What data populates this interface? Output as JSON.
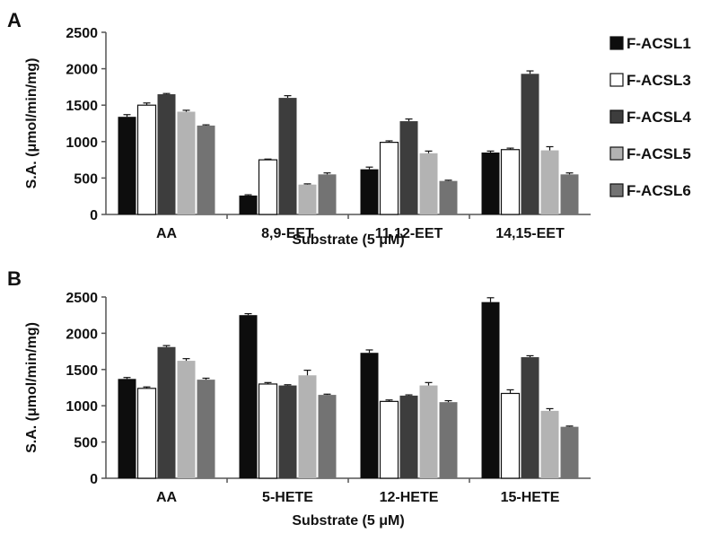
{
  "legend": [
    {
      "label": "F-ACSL1",
      "color": "#0d0d0d"
    },
    {
      "label": "F-ACSL3",
      "color": "#ffffff"
    },
    {
      "label": "F-ACSL4",
      "color": "#3d3d3d"
    },
    {
      "label": "F-ACSL5",
      "color": "#b3b3b3"
    },
    {
      "label": "F-ACSL6",
      "color": "#737373"
    }
  ],
  "chart_data": [
    {
      "panel": "A",
      "type": "bar",
      "xlabel": "Substrate (5 μM)",
      "ylabel": "S.A. (μmol/min/mg)",
      "ylim": [
        0,
        2500
      ],
      "yticks": [
        0,
        500,
        1000,
        1500,
        2000,
        2500
      ],
      "categories": [
        "AA",
        "8,9-EET",
        "11,12-EET",
        "14,15-EET"
      ],
      "series": [
        {
          "name": "F-ACSL1",
          "values": [
            1340,
            260,
            620,
            850
          ],
          "errors": [
            30,
            10,
            30,
            20
          ]
        },
        {
          "name": "F-ACSL3",
          "values": [
            1500,
            750,
            990,
            890
          ],
          "errors": [
            30,
            10,
            20,
            20
          ]
        },
        {
          "name": "F-ACSL4",
          "values": [
            1650,
            1600,
            1280,
            1930
          ],
          "errors": [
            10,
            30,
            30,
            40
          ]
        },
        {
          "name": "F-ACSL5",
          "values": [
            1410,
            410,
            840,
            880
          ],
          "errors": [
            20,
            10,
            30,
            50
          ]
        },
        {
          "name": "F-ACSL6",
          "values": [
            1220,
            550,
            460,
            550
          ],
          "errors": [
            10,
            20,
            10,
            20
          ]
        }
      ]
    },
    {
      "panel": "B",
      "type": "bar",
      "xlabel": "Substrate (5 μM)",
      "ylabel": "S.A. (μmol/min/mg)",
      "ylim": [
        0,
        2500
      ],
      "yticks": [
        0,
        500,
        1000,
        1500,
        2000,
        2500
      ],
      "categories": [
        "AA",
        "5-HETE",
        "12-HETE",
        "15-HETE"
      ],
      "series": [
        {
          "name": "F-ACSL1",
          "values": [
            1370,
            2250,
            1730,
            2430
          ],
          "errors": [
            20,
            20,
            40,
            60
          ]
        },
        {
          "name": "F-ACSL3",
          "values": [
            1240,
            1300,
            1060,
            1170
          ],
          "errors": [
            20,
            20,
            20,
            50
          ]
        },
        {
          "name": "F-ACSL4",
          "values": [
            1810,
            1280,
            1140,
            1670
          ],
          "errors": [
            20,
            10,
            10,
            20
          ]
        },
        {
          "name": "F-ACSL5",
          "values": [
            1620,
            1420,
            1280,
            930
          ],
          "errors": [
            30,
            70,
            40,
            30
          ]
        },
        {
          "name": "F-ACSL6",
          "values": [
            1360,
            1150,
            1050,
            710
          ],
          "errors": [
            20,
            10,
            20,
            10
          ]
        }
      ]
    }
  ]
}
